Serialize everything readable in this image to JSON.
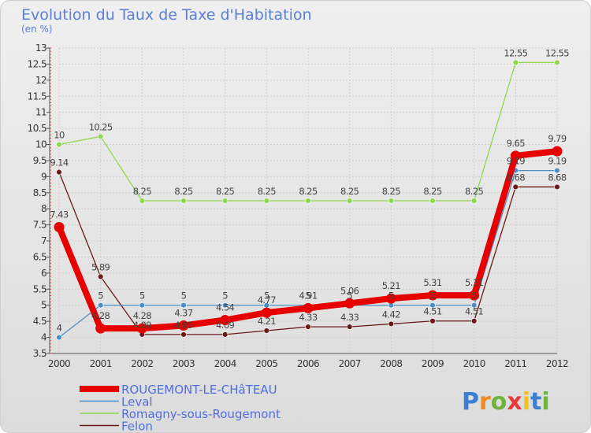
{
  "chart_data": {
    "type": "line",
    "title": "Evolution du Taux de Taxe d'Habitation",
    "subtitle": "(en %)",
    "x": [
      "2000",
      "2001",
      "2002",
      "2003",
      "2004",
      "2005",
      "2006",
      "2007",
      "2008",
      "2009",
      "2010",
      "2011",
      "2012"
    ],
    "ylim": [
      3.5,
      13
    ],
    "yticks": [
      3.5,
      4,
      4.5,
      5,
      5.5,
      6,
      6.5,
      7,
      7.5,
      8,
      8.5,
      9,
      9.5,
      10,
      10.5,
      11,
      11.5,
      12,
      12.5,
      13
    ],
    "grid": true,
    "legend_position": "bottom-left",
    "series": [
      {
        "name": "ROUGEMONT-LE-CHâTEAU",
        "color": "#e60000",
        "values": [
          7.43,
          4.28,
          4.28,
          4.37,
          4.54,
          4.77,
          4.91,
          5.06,
          5.21,
          5.31,
          5.31,
          9.65,
          9.79
        ],
        "labels": [
          "7.43",
          "4.28",
          "4.28",
          "4.37",
          "4.54",
          "4.77",
          "4.91",
          "5.06",
          "5.21",
          "5.31",
          "5.31",
          "9.65",
          "9.79"
        ]
      },
      {
        "name": "Leval",
        "color": "#4a8fc8",
        "values": [
          4,
          5,
          5,
          5,
          5,
          5,
          5,
          5,
          5,
          5,
          5,
          9.19,
          9.19
        ],
        "labels": [
          "4",
          "5",
          "5",
          "5",
          "5",
          "5",
          "5",
          "5",
          "5",
          "5",
          "5",
          "9.19",
          "9.19"
        ]
      },
      {
        "name": "Romagny-sous-Rougemont",
        "color": "#8ed84a",
        "values": [
          10,
          10.25,
          8.25,
          8.25,
          8.25,
          8.25,
          8.25,
          8.25,
          8.25,
          8.25,
          8.25,
          12.55,
          12.55
        ],
        "labels": [
          "10",
          "10.25",
          "8.25",
          "8.25",
          "8.25",
          "8.25",
          "8.25",
          "8.25",
          "8.25",
          "8.25",
          "8.25",
          "12.55",
          "12.55"
        ]
      },
      {
        "name": "Felon",
        "color": "#6b1a1a",
        "values": [
          9.14,
          5.89,
          4.09,
          4.09,
          4.09,
          4.21,
          4.33,
          4.33,
          4.42,
          4.51,
          4.51,
          8.68,
          8.68
        ],
        "labels": [
          "9.14",
          "5.89",
          "4.09",
          "4.09",
          "4.09",
          "4.21",
          "4.33",
          "4.33",
          "4.42",
          "4.51",
          "4.51",
          "8.68",
          "8.68"
        ]
      }
    ]
  },
  "brand": {
    "logo_letters": [
      "P",
      "r",
      "o",
      "x",
      "i",
      "t",
      "i"
    ],
    "logo_colors": [
      "#3a7fd0",
      "#f08a1c",
      "#6cb33f",
      "#e63b3b",
      "#f0c419",
      "#3a7fd0",
      "#6cb33f"
    ]
  }
}
